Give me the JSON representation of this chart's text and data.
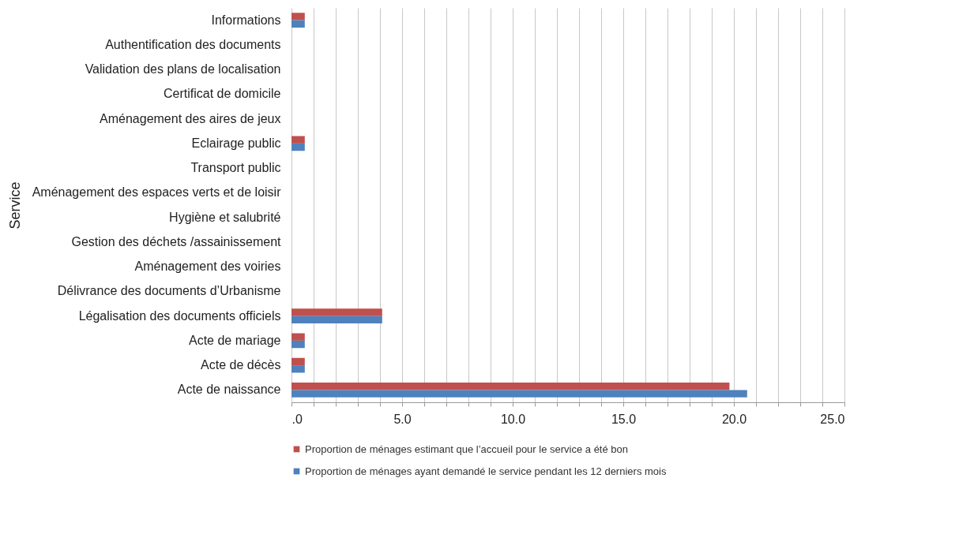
{
  "chart_data": {
    "type": "bar",
    "orientation": "horizontal",
    "ylabel": "Service",
    "categories": [
      "Informations",
      "Authentification des documents",
      "Validation des plans de localisation",
      "Certificat de domicile",
      "Aménagement des aires de jeux",
      "Eclairage public",
      "Transport public ",
      "Aménagement des espaces verts et de loisir",
      "Hygiène et salubrité",
      "Gestion des déchets /assainissement",
      "Aménagement des voiries",
      "Délivrance des documents d’Urbanisme",
      "Légalisation des documents officiels",
      "Acte de mariage",
      "Acte de décès",
      "Acte de naissance"
    ],
    "series": [
      {
        "name": "Proportion de ménages estimant que l’accueil pour le service a été bon",
        "color": "#c0504d",
        "values": [
          0.6,
          0,
          0,
          0,
          0,
          0.6,
          0,
          0,
          0,
          0,
          0,
          0,
          4.1,
          0.6,
          0.6,
          19.8
        ]
      },
      {
        "name": "Proportion de ménages ayant demandé le service pendant les 12 derniers mois",
        "color": "#4f81bd",
        "values": [
          0.6,
          0,
          0,
          0,
          0,
          0.6,
          0,
          0,
          0,
          0,
          0,
          0,
          4.1,
          0.6,
          0.6,
          20.6
        ]
      }
    ],
    "xlim": [
      0,
      25
    ],
    "xticks": [
      {
        "value": 0,
        "label": ".0"
      },
      {
        "value": 1,
        "label": null
      },
      {
        "value": 2,
        "label": null
      },
      {
        "value": 3,
        "label": null
      },
      {
        "value": 4,
        "label": null
      },
      {
        "value": 5,
        "label": "5.0"
      },
      {
        "value": 6,
        "label": null
      },
      {
        "value": 7,
        "label": null
      },
      {
        "value": 8,
        "label": null
      },
      {
        "value": 9,
        "label": null
      },
      {
        "value": 10,
        "label": "10.0"
      },
      {
        "value": 11,
        "label": null
      },
      {
        "value": 12,
        "label": null
      },
      {
        "value": 13,
        "label": null
      },
      {
        "value": 14,
        "label": null
      },
      {
        "value": 15,
        "label": "15.0"
      },
      {
        "value": 16,
        "label": null
      },
      {
        "value": 17,
        "label": null
      },
      {
        "value": 18,
        "label": null
      },
      {
        "value": 19,
        "label": null
      },
      {
        "value": 20,
        "label": "20.0"
      },
      {
        "value": 21,
        "label": null
      },
      {
        "value": 22,
        "label": null
      },
      {
        "value": 23,
        "label": null
      },
      {
        "value": 24,
        "label": null
      },
      {
        "value": 25,
        "label": "25.0"
      }
    ],
    "grid": "x",
    "legend": "bottom"
  }
}
